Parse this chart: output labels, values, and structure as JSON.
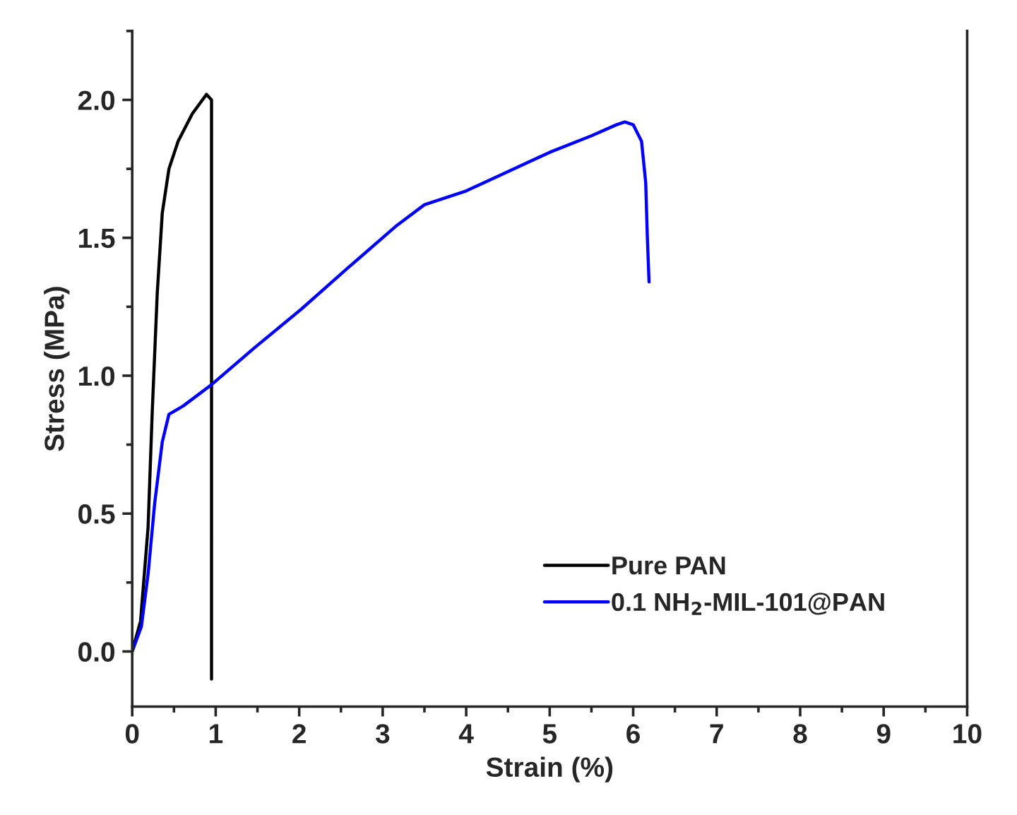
{
  "chart_data": {
    "type": "line",
    "xlabel": "Strain (%)",
    "ylabel": "Stress (MPa)",
    "xlim": [
      0,
      10
    ],
    "ylim": [
      -0.2,
      2.25
    ],
    "xticks": [
      0,
      1,
      2,
      3,
      4,
      5,
      6,
      7,
      8,
      9,
      10
    ],
    "yticks": [
      {
        "value": 0,
        "label": "0.0"
      },
      {
        "value": 0.5,
        "label": "0.5"
      },
      {
        "value": 1,
        "label": "1.0"
      },
      {
        "value": 1.5,
        "label": "1.5"
      },
      {
        "value": 2,
        "label": "2.0"
      }
    ],
    "grid": false,
    "legend": "bottom right",
    "marker": "none",
    "line_style": "solid",
    "series": [
      {
        "name": "Pure PAN",
        "color": "#000000",
        "x": [
          0,
          0.1,
          0.19,
          0.24,
          0.3,
          0.36,
          0.44,
          0.55,
          0.72,
          0.89,
          0.95,
          0.95
        ],
        "values": [
          0,
          0.11,
          0.45,
          0.87,
          1.3,
          1.59,
          1.75,
          1.85,
          1.95,
          2.02,
          2.0,
          -0.1
        ]
      },
      {
        "name": "0.1 NH$_{2}$-MIL-101@PAN",
        "color": "#0000ff",
        "x": [
          0,
          0.11,
          0.19,
          0.27,
          0.36,
          0.44,
          0.61,
          0.83,
          0.96,
          1.46,
          2.02,
          2.58,
          3.15,
          3.5,
          4.0,
          4.5,
          5.0,
          5.5,
          5.8,
          5.9,
          6.0,
          6.1,
          6.15,
          6.17,
          6.19
        ],
        "values": [
          0,
          0.09,
          0.28,
          0.54,
          0.76,
          0.86,
          0.89,
          0.94,
          0.97,
          1.1,
          1.24,
          1.39,
          1.54,
          1.62,
          1.67,
          1.74,
          1.81,
          1.87,
          1.91,
          1.92,
          1.91,
          1.85,
          1.7,
          1.5,
          1.34
        ]
      }
    ]
  }
}
